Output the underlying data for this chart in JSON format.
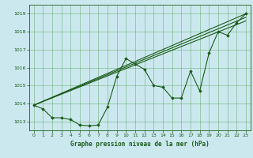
{
  "title": "Graphe pression niveau de la mer (hPa)",
  "xlim": [
    -0.5,
    23.5
  ],
  "ylim": [
    1012.5,
    1019.5
  ],
  "xticks": [
    0,
    1,
    2,
    3,
    4,
    5,
    6,
    7,
    8,
    9,
    10,
    11,
    12,
    13,
    14,
    15,
    16,
    17,
    18,
    19,
    20,
    21,
    22,
    23
  ],
  "yticks": [
    1013,
    1014,
    1015,
    1016,
    1017,
    1018,
    1019
  ],
  "bg_color": "#cce8ef",
  "grid_color": "#4a9a4a",
  "line_color": "#1a5c1a",
  "series": [
    {
      "x": [
        0,
        1,
        2,
        3,
        4,
        5,
        6,
        7,
        8,
        9,
        10,
        11,
        12,
        13,
        14,
        15,
        16,
        17,
        18,
        19,
        20,
        21,
        22,
        23
      ],
      "y": [
        1013.9,
        1013.7,
        1013.2,
        1013.2,
        1013.1,
        1012.8,
        1012.75,
        1012.8,
        1013.8,
        1015.5,
        1016.5,
        1016.2,
        1015.9,
        1015.0,
        1014.9,
        1014.3,
        1014.3,
        1015.8,
        1014.7,
        1016.8,
        1018.0,
        1017.8,
        1018.5,
        1019.0
      ]
    },
    {
      "x": [
        0,
        23
      ],
      "y": [
        1013.9,
        1019.0
      ]
    },
    {
      "x": [
        0,
        23
      ],
      "y": [
        1013.9,
        1018.8
      ]
    },
    {
      "x": [
        0,
        23
      ],
      "y": [
        1013.9,
        1018.6
      ]
    }
  ]
}
